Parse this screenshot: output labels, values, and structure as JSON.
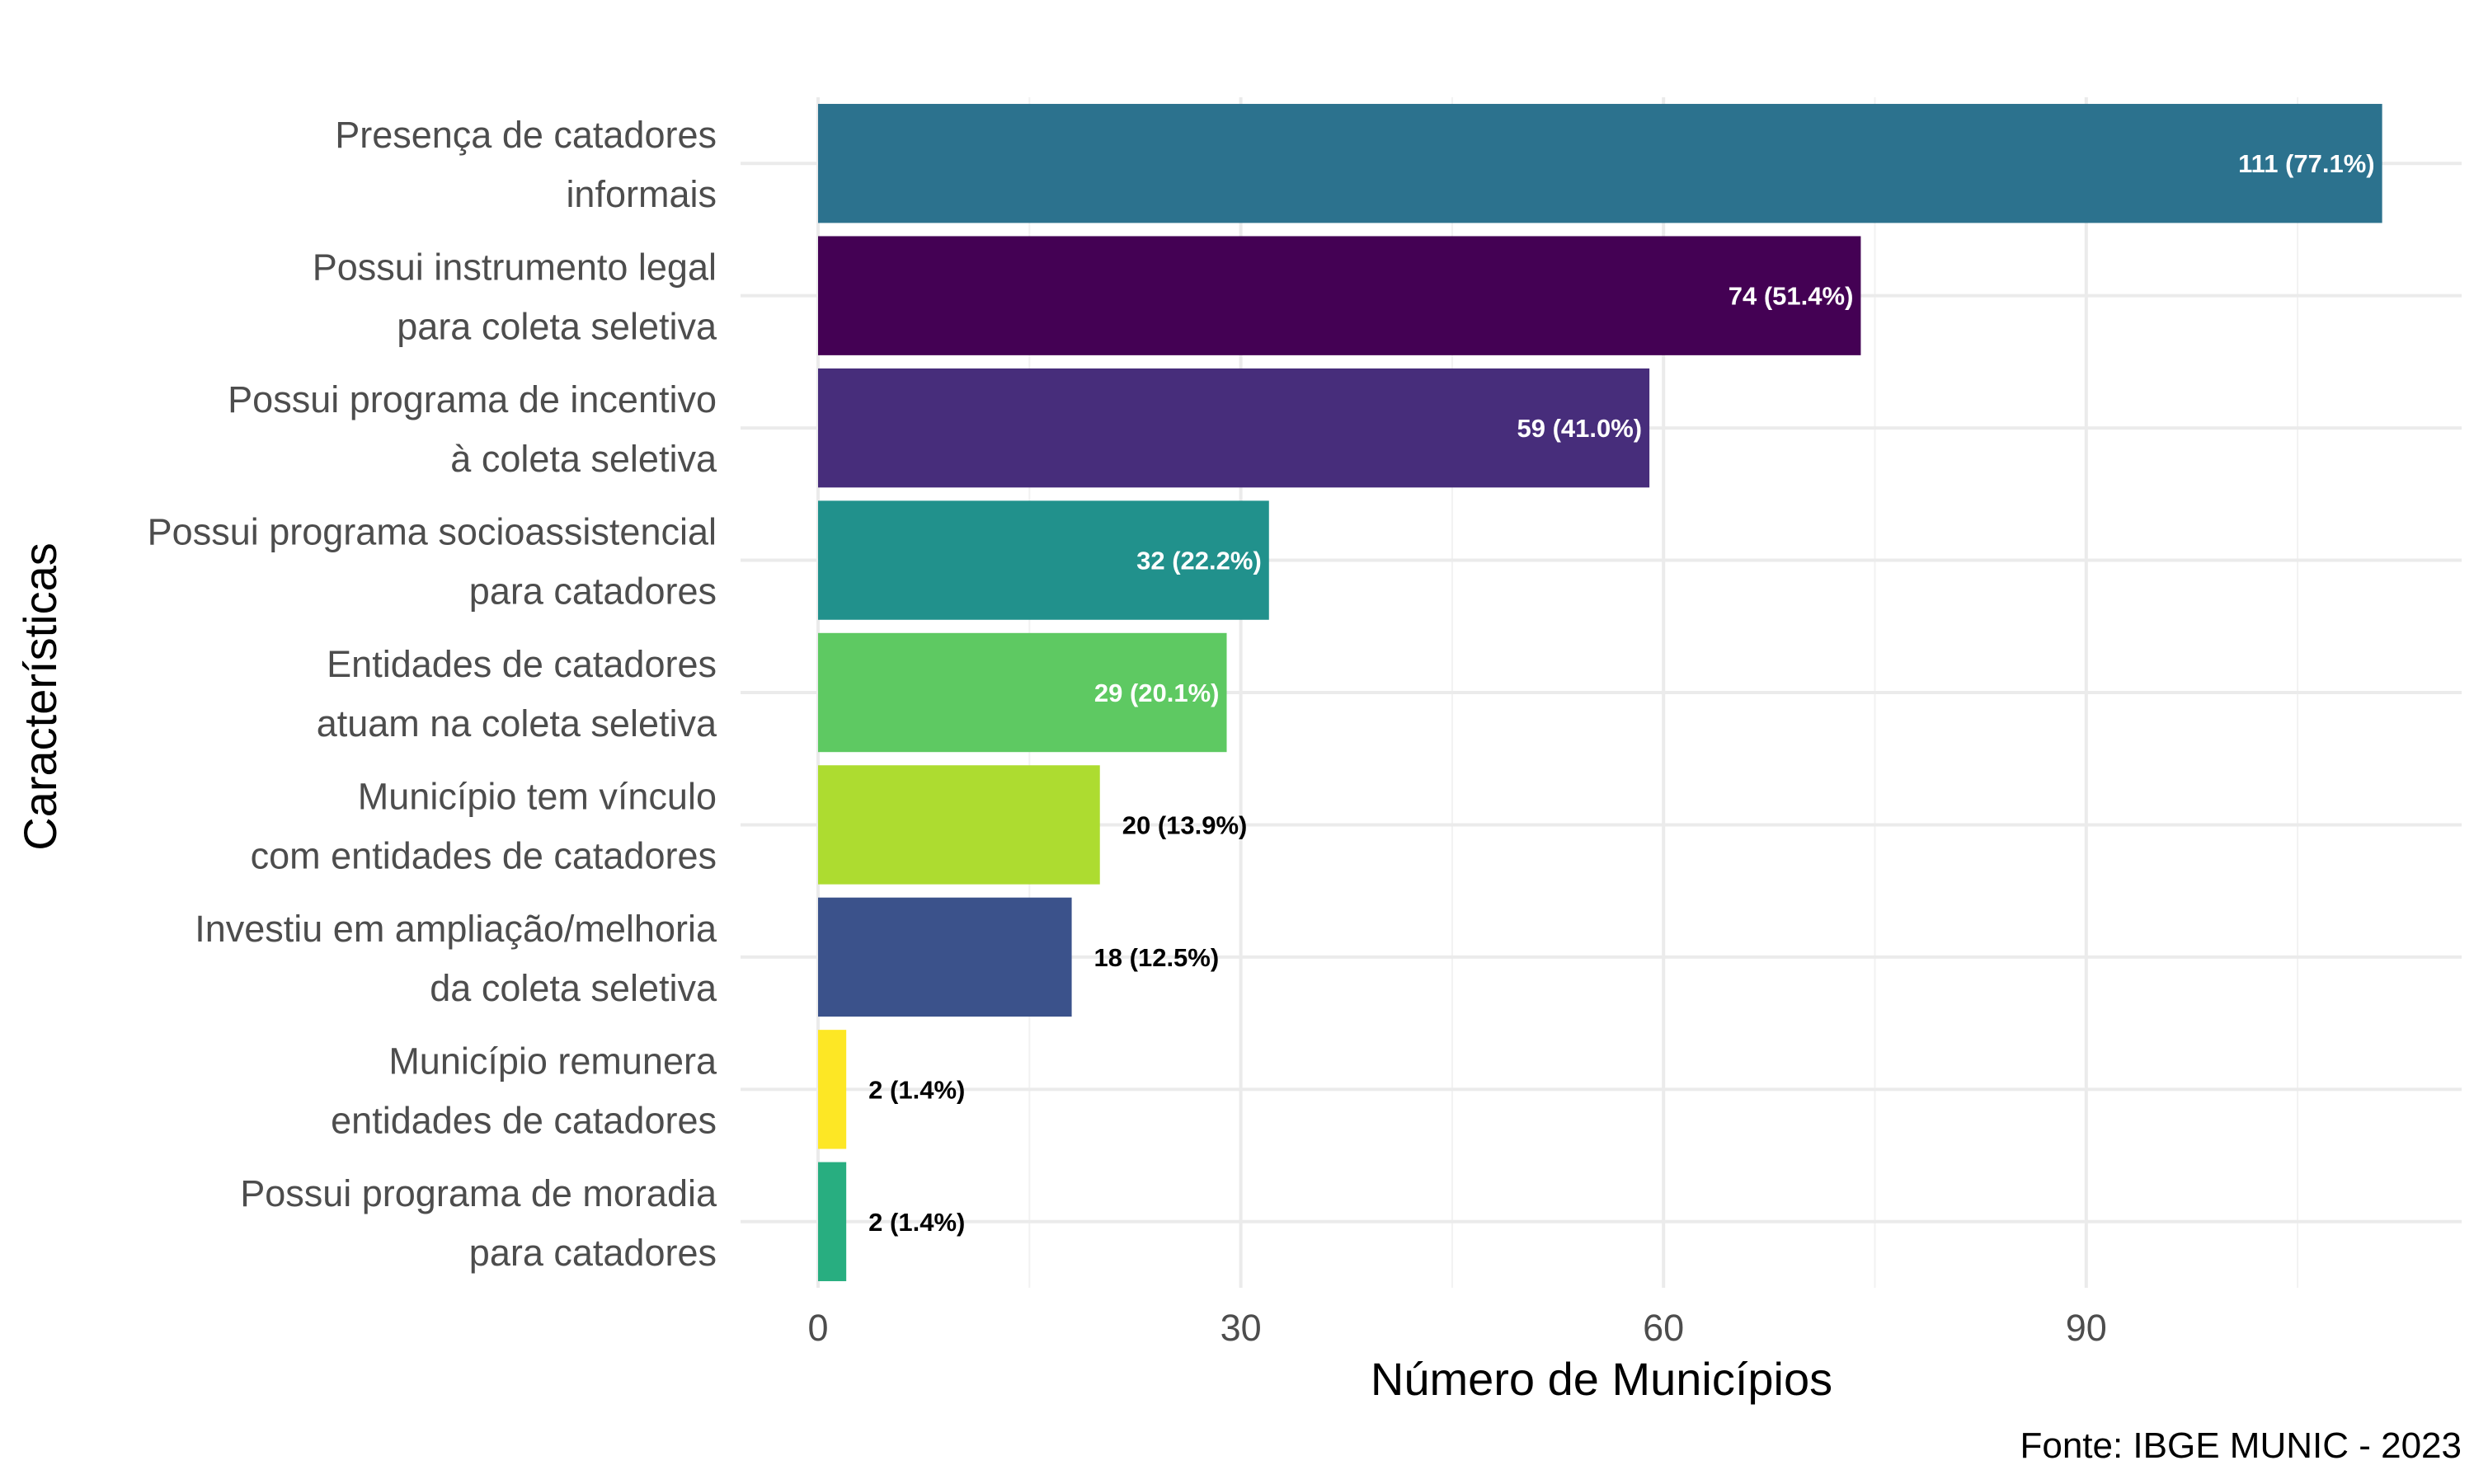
{
  "chart_data": {
    "type": "bar",
    "orientation": "horizontal",
    "title": "",
    "xlabel": "Número de Municípios",
    "ylabel": "Características",
    "xlim": [
      0,
      115
    ],
    "x_ticks": [
      0,
      30,
      60,
      90
    ],
    "grid": true,
    "legend": "none",
    "caption": "Fonte: IBGE MUNIC - 2023",
    "categories": [
      [
        "Presença de catadores",
        "informais"
      ],
      [
        "Possui instrumento legal",
        "para coleta seletiva"
      ],
      [
        "Possui programa de incentivo",
        "à coleta seletiva"
      ],
      [
        "Possui programa socioassistencial",
        "para catadores"
      ],
      [
        "Entidades de catadores",
        "atuam na coleta seletiva"
      ],
      [
        "Município tem vínculo",
        "com entidades de catadores"
      ],
      [
        "Investiu em ampliação/melhoria",
        "da coleta seletiva"
      ],
      [
        "Município remunera",
        "entidades de catadores"
      ],
      [
        "Possui programa de moradia",
        "para catadores"
      ]
    ],
    "values": [
      111,
      74,
      59,
      32,
      29,
      20,
      18,
      2,
      2
    ],
    "data_labels": [
      "111 (77.1%)",
      "74 (51.4%)",
      "59 (41.0%)",
      "32 (22.2%)",
      "29 (20.1%)",
      "20 (13.9%)",
      "18 (12.5%)",
      "2 (1.4%)",
      "2 (1.4%)"
    ],
    "label_inside": [
      true,
      true,
      true,
      true,
      true,
      false,
      false,
      false,
      false
    ],
    "colors": [
      "#2c728e",
      "#440154",
      "#472d7b",
      "#21918c",
      "#5ec962",
      "#addc30",
      "#3b528b",
      "#fde725",
      "#28ae80"
    ]
  }
}
